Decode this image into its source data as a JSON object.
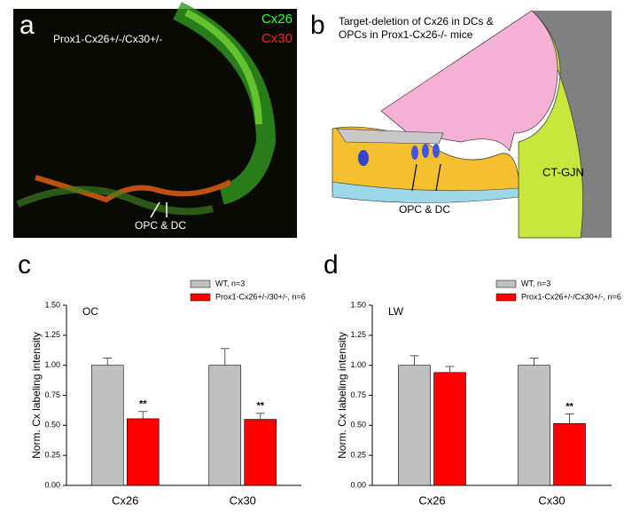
{
  "panel_a": {
    "letter": "a",
    "genotype": "Prox1-Cx26+/-/Cx30+/-",
    "green_label": "Cx26",
    "red_label": "Cx30",
    "arrow_label": "OPC & DC"
  },
  "panel_b": {
    "letter": "b",
    "title_lines": [
      "Target-deletion of Cx26 in DCs &",
      "OPCs in Prox1-Cx26-/- mice"
    ],
    "region_label": "CT-GJN",
    "arrow_label": "OPC & DC"
  },
  "chart_data": [
    {
      "type": "bar",
      "panel": "c",
      "title": "OC",
      "y_label": "Norm. Cx labeling intensity",
      "categories": [
        "Cx26",
        "Cx30"
      ],
      "series": [
        {
          "name": "WT, n=3",
          "color": "#c0c0c0",
          "values": [
            1.0,
            1.0
          ],
          "errors": [
            0.06,
            0.14
          ]
        },
        {
          "name": "Prox1-Cx26+/-/30+/-, n=6",
          "color": "#ff0000",
          "values": [
            0.555,
            0.55
          ],
          "errors": [
            0.06,
            0.05
          ],
          "significance": [
            "**",
            "**"
          ]
        }
      ],
      "ylim": [
        0,
        1.5
      ],
      "yticks": [
        {
          "value": 0,
          "label": "0.00"
        },
        {
          "value": 0.25,
          "label": "0.25"
        },
        {
          "value": 0.5,
          "label": "0.50"
        },
        {
          "value": 0.75,
          "label": "0.75"
        },
        {
          "value": 1,
          "label": "1.00"
        },
        {
          "value": 1.25,
          "label": "1.25"
        },
        {
          "value": 1.5,
          "label": "1.50"
        }
      ]
    },
    {
      "type": "bar",
      "panel": "d",
      "title": "LW",
      "y_label": "Norm. Cx labeling intensity",
      "categories": [
        "Cx26",
        "Cx30"
      ],
      "series": [
        {
          "name": "WT, n=3",
          "color": "#c0c0c0",
          "values": [
            1.0,
            1.0
          ],
          "errors": [
            0.08,
            0.06
          ]
        },
        {
          "name": "Prox1-Cx26+/-/Cx30+/-, n=6",
          "color": "#ff0000",
          "values": [
            0.94,
            0.515
          ],
          "errors": [
            0.05,
            0.08
          ],
          "significance": [
            null,
            "**"
          ]
        }
      ],
      "ylim": [
        0,
        1.5
      ],
      "yticks": [
        {
          "value": 0,
          "label": "0.00"
        },
        {
          "value": 0.25,
          "label": "0.25"
        },
        {
          "value": 0.5,
          "label": "0.50"
        },
        {
          "value": 0.75,
          "label": "0.75"
        },
        {
          "value": 1,
          "label": "1.00"
        },
        {
          "value": 1.25,
          "label": "1.25"
        },
        {
          "value": 1.5,
          "label": "1.50"
        }
      ]
    }
  ]
}
